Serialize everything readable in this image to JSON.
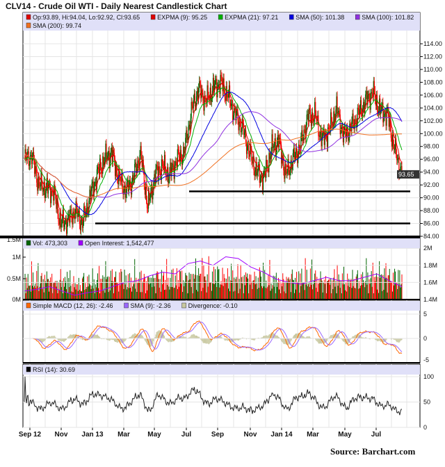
{
  "title": "CLV14 - Crude Oil WTI - Daily Nearest Candlestick Chart",
  "source": "Source:  Barchart.com",
  "chart_data": {
    "type": "candlestick",
    "x_tick_labels": [
      "Sep 12",
      "Nov",
      "Jan 13",
      "Mar",
      "May",
      "Jul",
      "Sep",
      "Nov",
      "Jan 14",
      "Mar",
      "May",
      "Jul"
    ],
    "grid": true,
    "price": {
      "legend": [
        {
          "label": "Op:93.89, Hi:94.04, Lo:92.92, Cl:93.65",
          "color": "#e00000"
        },
        {
          "label": "EXPMA (9): 95.25",
          "color": "#e00000"
        },
        {
          "label": "EXPMA (21): 97.21",
          "color": "#00b000"
        },
        {
          "label": "SMA (50): 101.38",
          "color": "#0000e0"
        },
        {
          "label": "SMA (100): 101.82",
          "color": "#9030e0"
        },
        {
          "label": "SMA (200): 99.74",
          "color": "#f07020"
        }
      ],
      "y_ticks": [
        "84.00",
        "86.00",
        "88.00",
        "90.00",
        "92.00",
        "94.00",
        "96.00",
        "98.00",
        "100.00",
        "102.00",
        "104.00",
        "106.00",
        "108.00",
        "110.00",
        "112.00",
        "114.00"
      ],
      "ylim": [
        84,
        114
      ],
      "last_price_label": "93.65",
      "closes_biweekly": [
        96,
        96.5,
        92,
        91.5,
        91,
        86,
        86.5,
        88,
        86,
        90,
        93.5,
        96,
        97,
        93,
        91,
        93,
        97,
        88.5,
        93.5,
        95,
        93.5,
        96,
        97,
        103.5,
        107,
        105,
        107,
        108,
        106,
        103,
        101,
        97,
        94,
        93,
        97.5,
        99,
        93.5,
        96,
        98,
        102.5,
        103,
        99,
        100.5,
        104,
        99.5,
        101,
        103,
        105,
        106.5,
        103.5,
        103,
        97.5,
        93.65
      ],
      "support_levels": [
        91,
        86
      ],
      "up_color": "#006400",
      "down_color": "#ff0000"
    },
    "volume": {
      "legend": [
        {
          "label": "Vol: 473,303",
          "color": "#006400"
        },
        {
          "label": "Open Interest: 1,542,477",
          "color": "#a000ff"
        }
      ],
      "left_ticks": [
        "0M",
        "0.5M",
        "1M",
        "1.5M"
      ],
      "right_ticks": [
        "1.4M",
        "1.6M",
        "1.8M",
        "2M"
      ],
      "volume_millions_biweekly": [
        0.5,
        0.55,
        0.5,
        0.55,
        0.45,
        0.5,
        0.45,
        0.4,
        0.5,
        0.45,
        0.55,
        0.6,
        0.55,
        0.6,
        0.5,
        0.55,
        0.5,
        0.55,
        0.6,
        0.55,
        0.55,
        0.6,
        0.55,
        0.65,
        0.7,
        0.6,
        0.65,
        0.6,
        0.6,
        0.55,
        0.6,
        0.55,
        0.6,
        0.55,
        0.5,
        0.45,
        0.55,
        0.55,
        0.6,
        0.6,
        0.55,
        0.5,
        0.5,
        0.55,
        0.5,
        0.55,
        0.55,
        0.6,
        0.6,
        0.65,
        0.6,
        0.6,
        0.5
      ],
      "open_interest_millions_monthly": [
        1.5,
        1.52,
        1.55,
        1.5,
        1.45,
        1.48,
        1.5,
        1.55,
        1.6,
        1.62,
        1.68,
        1.72,
        1.7,
        1.82,
        1.85,
        1.8,
        1.9,
        1.88,
        1.78,
        1.72,
        1.64,
        1.6,
        1.58,
        1.62,
        1.66,
        1.62,
        1.62,
        1.66,
        1.7,
        1.62,
        1.55
      ]
    },
    "macd": {
      "legend": [
        {
          "label": "Simple MACD (12, 26): -2.46",
          "color": "#ff6600"
        },
        {
          "label": "SMA (9): -2.36",
          "color": "#9966ff"
        },
        {
          "label": "Divergence: -0.10",
          "color": "#c8c8a0"
        }
      ],
      "y_ticks": [
        "-5",
        "0",
        "5"
      ],
      "ylim": [
        -5,
        5
      ]
    },
    "rsi": {
      "legend": [
        {
          "label": "RSI (14): 30.69",
          "color": "#000000"
        }
      ],
      "y_ticks": [
        "0",
        "50",
        "100"
      ],
      "ylim": [
        0,
        100
      ]
    }
  }
}
